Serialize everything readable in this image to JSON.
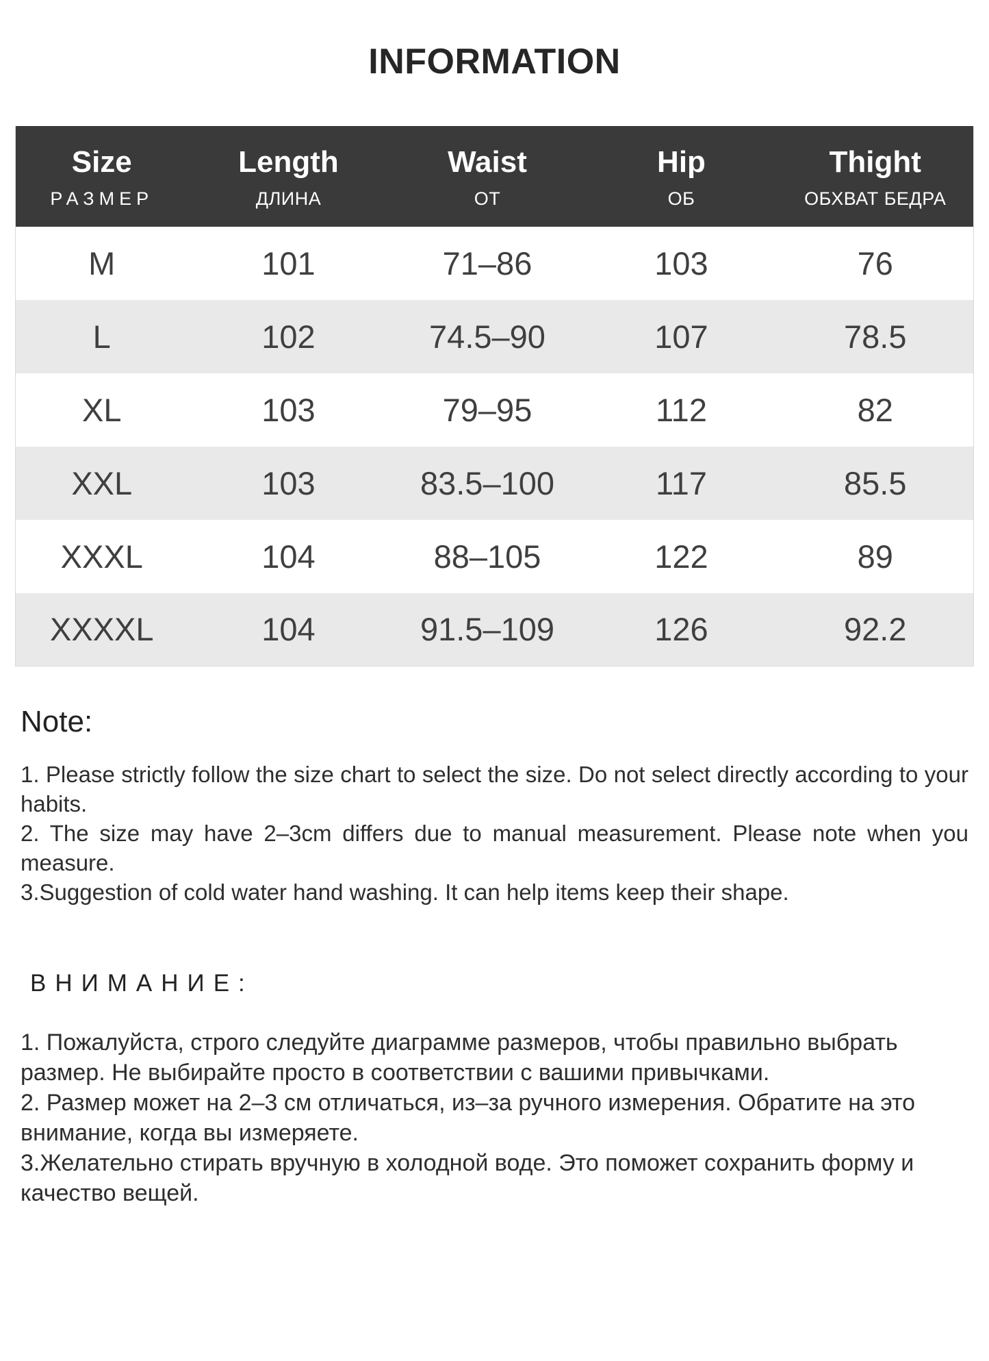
{
  "title": "INFORMATION",
  "table": {
    "columns": [
      {
        "en": "Size",
        "ru": "РАЗМЕР"
      },
      {
        "en": "Length",
        "ru": "ДЛИНА"
      },
      {
        "en": "Waist",
        "ru": "ОТ"
      },
      {
        "en": "Hip",
        "ru": "ОБ"
      },
      {
        "en": "Thight",
        "ru": "ОБХВАТ БЕДРА"
      }
    ],
    "rows": [
      [
        "M",
        "101",
        "71–86",
        "103",
        "76"
      ],
      [
        "L",
        "102",
        "74.5–90",
        "107",
        "78.5"
      ],
      [
        "XL",
        "103",
        "79–95",
        "112",
        "82"
      ],
      [
        "XXL",
        "103",
        "83.5–100",
        "117",
        "85.5"
      ],
      [
        "XXXL",
        "104",
        "88–105",
        "122",
        "89"
      ],
      [
        "XXXXL",
        "104",
        "91.5–109",
        "126",
        "92.2"
      ]
    ]
  },
  "notes_en": {
    "heading": "Note:",
    "items": [
      "1. Please strictly follow the size chart  to select the size. Do not select directly according to your habits.",
      "2. The size may have 2–3cm differs due to manual measurement. Please note when you measure.",
      "3.Suggestion of cold water hand washing. It can help items keep their shape."
    ]
  },
  "notes_ru": {
    "heading": "ВНИМАНИЕ:",
    "items": [
      "1. Пожалуйста, строго следуйте диаграмме размеров, чтобы правильно выбрать размер. Не выбирайте просто в соответствии с вашими привычками.",
      "2. Размер может на 2–3 см отличаться, из–за ручного измерения. Обратите на это внимание, когда вы измеряете.",
      "3.Желательно стирать вручную в холодной воде. Это поможет сохранить форму и качество вещей."
    ]
  },
  "colors": {
    "header_bg": "#3a3a3a",
    "header_text": "#ffffff",
    "row_alt_bg": "#e9e9e9",
    "body_text": "#3f3f3f",
    "page_bg": "#ffffff"
  }
}
